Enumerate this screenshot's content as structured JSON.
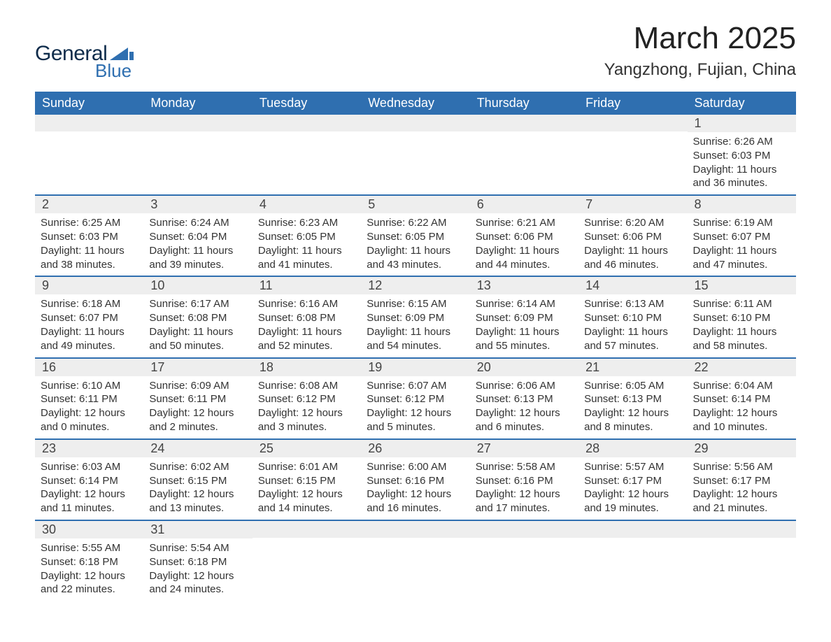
{
  "logo": {
    "text_top": "General",
    "text_bottom": "Blue",
    "shape_color": "#2f6fb0",
    "text_top_color": "#0d2b4a"
  },
  "title": "March 2025",
  "location": "Yangzhong, Fujian, China",
  "colors": {
    "header_bg": "#2f6fb0",
    "header_text": "#ffffff",
    "row_divider": "#2f6fb0",
    "daynum_bg": "#eeeeee",
    "body_text": "#333333",
    "background": "#ffffff"
  },
  "typography": {
    "title_fontsize": 44,
    "location_fontsize": 24,
    "dayhead_fontsize": 18,
    "daynum_fontsize": 18,
    "body_fontsize": 15
  },
  "column_headers": [
    "Sunday",
    "Monday",
    "Tuesday",
    "Wednesday",
    "Thursday",
    "Friday",
    "Saturday"
  ],
  "weeks": [
    [
      {
        "day": "",
        "sunrise": "",
        "sunset": "",
        "daylight": ""
      },
      {
        "day": "",
        "sunrise": "",
        "sunset": "",
        "daylight": ""
      },
      {
        "day": "",
        "sunrise": "",
        "sunset": "",
        "daylight": ""
      },
      {
        "day": "",
        "sunrise": "",
        "sunset": "",
        "daylight": ""
      },
      {
        "day": "",
        "sunrise": "",
        "sunset": "",
        "daylight": ""
      },
      {
        "day": "",
        "sunrise": "",
        "sunset": "",
        "daylight": ""
      },
      {
        "day": "1",
        "sunrise": "Sunrise: 6:26 AM",
        "sunset": "Sunset: 6:03 PM",
        "daylight": "Daylight: 11 hours and 36 minutes."
      }
    ],
    [
      {
        "day": "2",
        "sunrise": "Sunrise: 6:25 AM",
        "sunset": "Sunset: 6:03 PM",
        "daylight": "Daylight: 11 hours and 38 minutes."
      },
      {
        "day": "3",
        "sunrise": "Sunrise: 6:24 AM",
        "sunset": "Sunset: 6:04 PM",
        "daylight": "Daylight: 11 hours and 39 minutes."
      },
      {
        "day": "4",
        "sunrise": "Sunrise: 6:23 AM",
        "sunset": "Sunset: 6:05 PM",
        "daylight": "Daylight: 11 hours and 41 minutes."
      },
      {
        "day": "5",
        "sunrise": "Sunrise: 6:22 AM",
        "sunset": "Sunset: 6:05 PM",
        "daylight": "Daylight: 11 hours and 43 minutes."
      },
      {
        "day": "6",
        "sunrise": "Sunrise: 6:21 AM",
        "sunset": "Sunset: 6:06 PM",
        "daylight": "Daylight: 11 hours and 44 minutes."
      },
      {
        "day": "7",
        "sunrise": "Sunrise: 6:20 AM",
        "sunset": "Sunset: 6:06 PM",
        "daylight": "Daylight: 11 hours and 46 minutes."
      },
      {
        "day": "8",
        "sunrise": "Sunrise: 6:19 AM",
        "sunset": "Sunset: 6:07 PM",
        "daylight": "Daylight: 11 hours and 47 minutes."
      }
    ],
    [
      {
        "day": "9",
        "sunrise": "Sunrise: 6:18 AM",
        "sunset": "Sunset: 6:07 PM",
        "daylight": "Daylight: 11 hours and 49 minutes."
      },
      {
        "day": "10",
        "sunrise": "Sunrise: 6:17 AM",
        "sunset": "Sunset: 6:08 PM",
        "daylight": "Daylight: 11 hours and 50 minutes."
      },
      {
        "day": "11",
        "sunrise": "Sunrise: 6:16 AM",
        "sunset": "Sunset: 6:08 PM",
        "daylight": "Daylight: 11 hours and 52 minutes."
      },
      {
        "day": "12",
        "sunrise": "Sunrise: 6:15 AM",
        "sunset": "Sunset: 6:09 PM",
        "daylight": "Daylight: 11 hours and 54 minutes."
      },
      {
        "day": "13",
        "sunrise": "Sunrise: 6:14 AM",
        "sunset": "Sunset: 6:09 PM",
        "daylight": "Daylight: 11 hours and 55 minutes."
      },
      {
        "day": "14",
        "sunrise": "Sunrise: 6:13 AM",
        "sunset": "Sunset: 6:10 PM",
        "daylight": "Daylight: 11 hours and 57 minutes."
      },
      {
        "day": "15",
        "sunrise": "Sunrise: 6:11 AM",
        "sunset": "Sunset: 6:10 PM",
        "daylight": "Daylight: 11 hours and 58 minutes."
      }
    ],
    [
      {
        "day": "16",
        "sunrise": "Sunrise: 6:10 AM",
        "sunset": "Sunset: 6:11 PM",
        "daylight": "Daylight: 12 hours and 0 minutes."
      },
      {
        "day": "17",
        "sunrise": "Sunrise: 6:09 AM",
        "sunset": "Sunset: 6:11 PM",
        "daylight": "Daylight: 12 hours and 2 minutes."
      },
      {
        "day": "18",
        "sunrise": "Sunrise: 6:08 AM",
        "sunset": "Sunset: 6:12 PM",
        "daylight": "Daylight: 12 hours and 3 minutes."
      },
      {
        "day": "19",
        "sunrise": "Sunrise: 6:07 AM",
        "sunset": "Sunset: 6:12 PM",
        "daylight": "Daylight: 12 hours and 5 minutes."
      },
      {
        "day": "20",
        "sunrise": "Sunrise: 6:06 AM",
        "sunset": "Sunset: 6:13 PM",
        "daylight": "Daylight: 12 hours and 6 minutes."
      },
      {
        "day": "21",
        "sunrise": "Sunrise: 6:05 AM",
        "sunset": "Sunset: 6:13 PM",
        "daylight": "Daylight: 12 hours and 8 minutes."
      },
      {
        "day": "22",
        "sunrise": "Sunrise: 6:04 AM",
        "sunset": "Sunset: 6:14 PM",
        "daylight": "Daylight: 12 hours and 10 minutes."
      }
    ],
    [
      {
        "day": "23",
        "sunrise": "Sunrise: 6:03 AM",
        "sunset": "Sunset: 6:14 PM",
        "daylight": "Daylight: 12 hours and 11 minutes."
      },
      {
        "day": "24",
        "sunrise": "Sunrise: 6:02 AM",
        "sunset": "Sunset: 6:15 PM",
        "daylight": "Daylight: 12 hours and 13 minutes."
      },
      {
        "day": "25",
        "sunrise": "Sunrise: 6:01 AM",
        "sunset": "Sunset: 6:15 PM",
        "daylight": "Daylight: 12 hours and 14 minutes."
      },
      {
        "day": "26",
        "sunrise": "Sunrise: 6:00 AM",
        "sunset": "Sunset: 6:16 PM",
        "daylight": "Daylight: 12 hours and 16 minutes."
      },
      {
        "day": "27",
        "sunrise": "Sunrise: 5:58 AM",
        "sunset": "Sunset: 6:16 PM",
        "daylight": "Daylight: 12 hours and 17 minutes."
      },
      {
        "day": "28",
        "sunrise": "Sunrise: 5:57 AM",
        "sunset": "Sunset: 6:17 PM",
        "daylight": "Daylight: 12 hours and 19 minutes."
      },
      {
        "day": "29",
        "sunrise": "Sunrise: 5:56 AM",
        "sunset": "Sunset: 6:17 PM",
        "daylight": "Daylight: 12 hours and 21 minutes."
      }
    ],
    [
      {
        "day": "30",
        "sunrise": "Sunrise: 5:55 AM",
        "sunset": "Sunset: 6:18 PM",
        "daylight": "Daylight: 12 hours and 22 minutes."
      },
      {
        "day": "31",
        "sunrise": "Sunrise: 5:54 AM",
        "sunset": "Sunset: 6:18 PM",
        "daylight": "Daylight: 12 hours and 24 minutes."
      },
      {
        "day": "",
        "sunrise": "",
        "sunset": "",
        "daylight": ""
      },
      {
        "day": "",
        "sunrise": "",
        "sunset": "",
        "daylight": ""
      },
      {
        "day": "",
        "sunrise": "",
        "sunset": "",
        "daylight": ""
      },
      {
        "day": "",
        "sunrise": "",
        "sunset": "",
        "daylight": ""
      },
      {
        "day": "",
        "sunrise": "",
        "sunset": "",
        "daylight": ""
      }
    ]
  ]
}
